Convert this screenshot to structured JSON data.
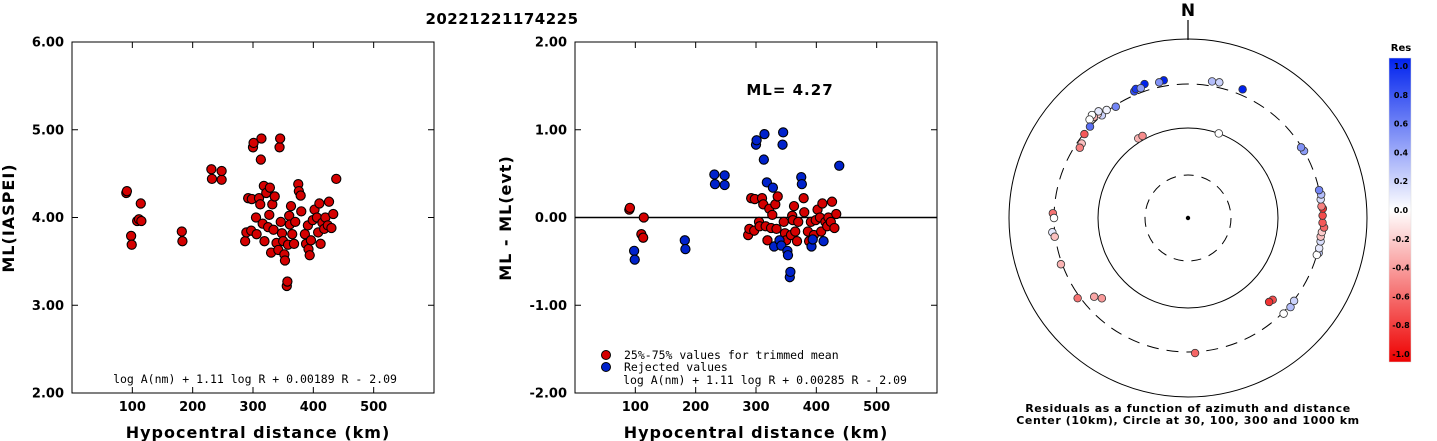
{
  "chart_data": [
    {
      "type": "scatter",
      "title": "20221221174225",
      "xlabel": "Hypocentral distance (km)",
      "ylabel": "ML(IASPEI)",
      "xlim": [
        0,
        600
      ],
      "ylim": [
        2.0,
        6.0
      ],
      "x_ticks": [
        "100",
        "200",
        "300",
        "400",
        "500"
      ],
      "y_ticks": [
        "2.00",
        "3.00",
        "4.00",
        "5.00",
        "6.00"
      ],
      "formula": "log A(nm) + 1.11 log R + 0.00189 R - 2.09",
      "point_color": "#d40000",
      "points": [
        [
          90,
          4.28
        ],
        [
          91,
          4.3
        ],
        [
          98,
          3.79
        ],
        [
          99,
          3.69
        ],
        [
          108,
          3.96
        ],
        [
          111,
          3.98
        ],
        [
          114,
          4.16
        ],
        [
          115,
          3.96
        ],
        [
          182,
          3.84
        ],
        [
          183,
          3.73
        ],
        [
          231,
          4.55
        ],
        [
          232,
          4.44
        ],
        [
          248,
          4.43
        ],
        [
          248,
          4.53
        ],
        [
          287,
          3.73
        ],
        [
          289,
          3.83
        ],
        [
          292,
          4.22
        ],
        [
          297,
          3.85
        ],
        [
          298,
          4.21
        ],
        [
          300,
          4.8
        ],
        [
          301,
          4.85
        ],
        [
          305,
          4.0
        ],
        [
          306,
          3.81
        ],
        [
          310,
          4.22
        ],
        [
          312,
          4.15
        ],
        [
          313,
          4.66
        ],
        [
          314,
          4.9
        ],
        [
          316,
          3.93
        ],
        [
          318,
          4.36
        ],
        [
          319,
          3.73
        ],
        [
          322,
          4.28
        ],
        [
          325,
          3.89
        ],
        [
          327,
          4.03
        ],
        [
          328,
          4.34
        ],
        [
          330,
          3.6
        ],
        [
          332,
          4.15
        ],
        [
          334,
          3.86
        ],
        [
          336,
          4.24
        ],
        [
          339,
          3.71
        ],
        [
          342,
          3.63
        ],
        [
          344,
          4.8
        ],
        [
          345,
          4.9
        ],
        [
          346,
          3.95
        ],
        [
          348,
          3.82
        ],
        [
          350,
          3.73
        ],
        [
          352,
          3.58
        ],
        [
          353,
          3.51
        ],
        [
          356,
          3.22
        ],
        [
          357,
          3.27
        ],
        [
          358,
          3.69
        ],
        [
          360,
          4.02
        ],
        [
          361,
          3.92
        ],
        [
          363,
          4.13
        ],
        [
          365,
          3.81
        ],
        [
          368,
          3.7
        ],
        [
          370,
          3.95
        ],
        [
          375,
          4.38
        ],
        [
          376,
          4.3
        ],
        [
          379,
          4.25
        ],
        [
          380,
          4.07
        ],
        [
          386,
          3.81
        ],
        [
          388,
          3.7
        ],
        [
          391,
          3.91
        ],
        [
          392,
          3.64
        ],
        [
          394,
          3.57
        ],
        [
          396,
          3.74
        ],
        [
          399,
          3.97
        ],
        [
          402,
          4.09
        ],
        [
          406,
          4.0
        ],
        [
          408,
          3.83
        ],
        [
          410,
          4.16
        ],
        [
          412,
          3.7
        ],
        [
          415,
          3.94
        ],
        [
          418,
          3.87
        ],
        [
          420,
          4.0
        ],
        [
          424,
          3.91
        ],
        [
          426,
          4.18
        ],
        [
          430,
          3.88
        ],
        [
          433,
          4.04
        ],
        [
          438,
          4.44
        ]
      ]
    },
    {
      "type": "scatter",
      "xlabel": "Hypocentral distance (km)",
      "ylabel": "ML - ML(evt)",
      "xlim": [
        0,
        600
      ],
      "ylim": [
        -2.0,
        2.0
      ],
      "x_ticks": [
        "100",
        "200",
        "300",
        "400",
        "500"
      ],
      "y_ticks": [
        "-2.00",
        "-1.00",
        "0.00",
        "1.00",
        "2.00"
      ],
      "ml_label": "ML= 4.27",
      "reference_line": 0.0,
      "formula": "log A(nm) + 1.11 log R + 0.00285 R - 2.09",
      "legend": {
        "placement": "bottom-left",
        "items": [
          {
            "label": "25%-75% values for trimmed mean",
            "color": "#d40000"
          },
          {
            "label": "Rejected values",
            "color": "#0022cc"
          }
        ]
      },
      "series": [
        {
          "name": "25%-75% values for trimmed mean",
          "color": "#d40000",
          "points": [
            [
              90,
              0.09
            ],
            [
              91,
              0.11
            ],
            [
              110,
              -0.19
            ],
            [
              113,
              -0.23
            ],
            [
              114,
              0.0
            ],
            [
              287,
              -0.2
            ],
            [
              289,
              -0.13
            ],
            [
              292,
              0.22
            ],
            [
              297,
              -0.15
            ],
            [
              298,
              0.21
            ],
            [
              305,
              -0.05
            ],
            [
              306,
              -0.1
            ],
            [
              310,
              0.22
            ],
            [
              312,
              0.15
            ],
            [
              316,
              -0.1
            ],
            [
              319,
              -0.26
            ],
            [
              322,
              0.1
            ],
            [
              325,
              -0.12
            ],
            [
              327,
              0.03
            ],
            [
              332,
              0.15
            ],
            [
              334,
              -0.13
            ],
            [
              336,
              0.24
            ],
            [
              346,
              -0.05
            ],
            [
              348,
              -0.18
            ],
            [
              350,
              -0.26
            ],
            [
              358,
              -0.2
            ],
            [
              360,
              0.02
            ],
            [
              361,
              -0.03
            ],
            [
              363,
              0.13
            ],
            [
              365,
              -0.16
            ],
            [
              368,
              -0.27
            ],
            [
              370,
              -0.05
            ],
            [
              379,
              0.22
            ],
            [
              380,
              0.06
            ],
            [
              386,
              -0.16
            ],
            [
              388,
              -0.27
            ],
            [
              391,
              -0.05
            ],
            [
              396,
              -0.2
            ],
            [
              399,
              -0.03
            ],
            [
              402,
              0.09
            ],
            [
              406,
              0.0
            ],
            [
              408,
              -0.16
            ],
            [
              410,
              0.16
            ],
            [
              415,
              -0.05
            ],
            [
              418,
              -0.1
            ],
            [
              420,
              0.0
            ],
            [
              424,
              -0.05
            ],
            [
              426,
              0.18
            ],
            [
              430,
              -0.12
            ],
            [
              433,
              0.04
            ]
          ]
        },
        {
          "name": "Rejected values",
          "color": "#0022cc",
          "points": [
            [
              98,
              -0.38
            ],
            [
              99,
              -0.48
            ],
            [
              182,
              -0.26
            ],
            [
              183,
              -0.36
            ],
            [
              231,
              0.49
            ],
            [
              232,
              0.38
            ],
            [
              248,
              0.37
            ],
            [
              248,
              0.48
            ],
            [
              300,
              0.83
            ],
            [
              301,
              0.88
            ],
            [
              313,
              0.66
            ],
            [
              314,
              0.95
            ],
            [
              318,
              0.4
            ],
            [
              328,
              0.34
            ],
            [
              330,
              -0.33
            ],
            [
              339,
              -0.26
            ],
            [
              342,
              -0.32
            ],
            [
              344,
              0.83
            ],
            [
              345,
              0.97
            ],
            [
              352,
              -0.38
            ],
            [
              353,
              -0.43
            ],
            [
              356,
              -0.68
            ],
            [
              357,
              -0.62
            ],
            [
              375,
              0.46
            ],
            [
              376,
              0.38
            ],
            [
              392,
              -0.33
            ],
            [
              394,
              -0.25
            ],
            [
              412,
              -0.27
            ],
            [
              438,
              0.59
            ]
          ]
        }
      ]
    },
    {
      "type": "scatter",
      "north_label": "N",
      "caption": [
        "Residuals as a function of azimuth and distance",
        "Center (10km), Circle at 30, 100, 300 and 1000 km"
      ],
      "colorbar": {
        "title": "Res",
        "tick_labels": [
          "1.0",
          "0.8",
          "0.6",
          "0.4",
          "0.2",
          "0.0",
          "-0.2",
          "-0.4",
          "-0.6",
          "-0.8",
          "-1.0"
        ],
        "max_color": "#0022ee",
        "mid_color": "#ffffff",
        "min_color": "#ee0000"
      },
      "stations": [
        {
          "az": -40,
          "dist": 300,
          "res": 0.2
        },
        {
          "az": -37,
          "dist": 310,
          "res": 0.05
        },
        {
          "az": -41,
          "dist": 330,
          "res": -0.2
        },
        {
          "az": -40,
          "dist": 345,
          "res": 0.1
        },
        {
          "az": -43,
          "dist": 335,
          "res": -0.3
        },
        {
          "az": -43,
          "dist": 360,
          "res": 0.0
        },
        {
          "az": -45,
          "dist": 345,
          "res": 0.0
        },
        {
          "az": -23,
          "dist": 330,
          "res": 0.8
        },
        {
          "az": -22,
          "dist": 345,
          "res": 0.9
        },
        {
          "az": -18,
          "dist": 360,
          "res": 1.0
        },
        {
          "az": -10,
          "dist": 350,
          "res": 1.0
        },
        {
          "az": -12,
          "dist": 340,
          "res": 0.5
        },
        {
          "az": -20,
          "dist": 335,
          "res": 0.45
        },
        {
          "az": 10,
          "dist": 340,
          "res": 0.3
        },
        {
          "az": 13,
          "dist": 345,
          "res": 0.2
        },
        {
          "az": 23,
          "dist": 350,
          "res": 1.0
        },
        {
          "az": -33,
          "dist": 290,
          "res": 0.55
        },
        {
          "az": -47,
          "dist": 300,
          "res": 0.65
        },
        {
          "az": -51,
          "dist": 295,
          "res": -0.65
        },
        {
          "az": -55,
          "dist": 270,
          "res": -0.25
        },
        {
          "az": -57,
          "dist": 265,
          "res": -0.5
        },
        {
          "az": -88,
          "dist": 310,
          "res": -0.55
        },
        {
          "az": -90,
          "dist": 300,
          "res": 0.0
        },
        {
          "az": -96,
          "dist": 320,
          "res": 0.1
        },
        {
          "az": -98,
          "dist": 305,
          "res": -0.25
        },
        {
          "az": -110,
          "dist": 310,
          "res": -0.3
        },
        {
          "az": -126,
          "dist": 320,
          "res": -0.55
        },
        {
          "az": -130,
          "dist": 225,
          "res": -0.35
        },
        {
          "az": -133,
          "dist": 200,
          "res": -0.4
        },
        {
          "az": 177,
          "dist": 310,
          "res": -0.6
        },
        {
          "az": 134,
          "dist": 200,
          "res": -0.7
        },
        {
          "az": 136,
          "dist": 195,
          "res": -0.8
        },
        {
          "az": 131,
          "dist": 315,
          "res": 0.3
        },
        {
          "az": 128,
          "dist": 305,
          "res": 0.2
        },
        {
          "az": 135,
          "dist": 310,
          "res": 0.0
        },
        {
          "az": 105,
          "dist": 310,
          "res": 0.25
        },
        {
          "az": 106,
          "dist": 300,
          "res": 0.0
        },
        {
          "az": 103,
          "dist": 305,
          "res": 0.1
        },
        {
          "az": 100,
          "dist": 305,
          "res": 0.15
        },
        {
          "az": 98,
          "dist": 300,
          "res": -0.25
        },
        {
          "az": 96,
          "dist": 305,
          "res": -0.2
        },
        {
          "az": 94,
          "dist": 320,
          "res": -0.6
        },
        {
          "az": 92,
          "dist": 305,
          "res": -0.65
        },
        {
          "az": 89,
          "dist": 305,
          "res": -0.7
        },
        {
          "az": 86,
          "dist": 310,
          "res": -0.8
        },
        {
          "az": 85,
          "dist": 300,
          "res": -0.5
        },
        {
          "az": 82,
          "dist": 300,
          "res": 0.15
        },
        {
          "az": 80,
          "dist": 310,
          "res": 0.3
        },
        {
          "az": 78,
          "dist": 300,
          "res": 0.55
        },
        {
          "az": 60,
          "dist": 300,
          "res": 0.45
        },
        {
          "az": 58,
          "dist": 295,
          "res": 0.5
        },
        {
          "az": 20,
          "dist": 100,
          "res": 0.0
        },
        {
          "az": -32,
          "dist": 110,
          "res": -0.3
        },
        {
          "az": -29,
          "dist": 110,
          "res": -0.45
        }
      ]
    }
  ]
}
